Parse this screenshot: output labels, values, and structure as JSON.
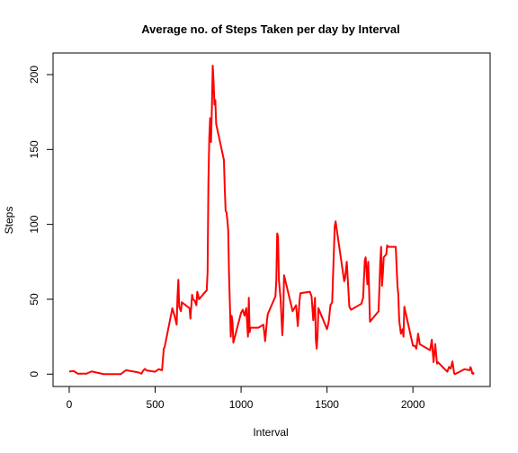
{
  "chart_data": {
    "type": "line",
    "title": "Average no. of Steps Taken per day by Interval",
    "x_label": "Interval",
    "y_label": "Steps",
    "x": [
      0,
      25,
      50,
      100,
      130,
      200,
      300,
      330,
      400,
      420,
      430,
      440,
      450,
      500,
      520,
      540,
      550,
      555,
      600,
      615,
      625,
      630,
      635,
      640,
      650,
      655,
      700,
      705,
      715,
      720,
      730,
      740,
      745,
      750,
      755,
      800,
      805,
      810,
      815,
      820,
      825,
      830,
      835,
      840,
      845,
      850,
      855,
      900,
      905,
      910,
      915,
      920,
      925,
      930,
      935,
      940,
      945,
      950,
      955,
      1000,
      1010,
      1020,
      1030,
      1040,
      1045,
      1050,
      1055,
      1100,
      1130,
      1140,
      1150,
      1155,
      1200,
      1205,
      1210,
      1215,
      1220,
      1230,
      1240,
      1245,
      1250,
      1300,
      1310,
      1320,
      1330,
      1340,
      1345,
      1400,
      1410,
      1420,
      1430,
      1435,
      1440,
      1445,
      1450,
      1500,
      1510,
      1520,
      1530,
      1535,
      1540,
      1545,
      1550,
      1600,
      1605,
      1615,
      1630,
      1640,
      1700,
      1710,
      1720,
      1725,
      1730,
      1735,
      1740,
      1745,
      1750,
      1800,
      1805,
      1810,
      1815,
      1820,
      1825,
      1830,
      1845,
      1850,
      1855,
      1900,
      1910,
      1915,
      1920,
      1930,
      1940,
      1945,
      1950,
      2000,
      2010,
      2020,
      2030,
      2040,
      2100,
      2110,
      2120,
      2130,
      2140,
      2145,
      2200,
      2210,
      2220,
      2230,
      2240,
      2245,
      2300,
      2330,
      2335,
      2340,
      2345,
      2350,
      2355
    ],
    "series": [
      {
        "name": "Steps",
        "color": "#ff0000",
        "values": [
          1.7,
          2.1,
          0.3,
          0.3,
          1.8,
          0,
          0,
          2.6,
          1.2,
          0.3,
          2.3,
          3.5,
          2.5,
          1.6,
          3.3,
          2.6,
          17,
          18,
          44,
          38,
          33,
          52,
          63,
          45,
          42,
          48,
          44,
          37,
          53,
          50,
          49,
          46,
          55,
          53,
          50,
          56,
          68,
          129,
          158,
          171,
          155,
          177,
          206,
          195,
          180,
          183,
          167,
          143,
          124,
          109,
          108,
          103,
          96,
          66,
          46,
          25,
          39,
          35,
          21,
          41,
          43,
          39,
          44,
          25,
          51,
          28,
          31,
          31,
          33,
          22,
          35,
          40,
          52,
          63,
          94,
          92,
          63,
          50,
          26,
          38,
          66,
          42,
          44,
          46,
          32,
          49,
          54,
          55,
          52,
          36,
          51,
          23,
          17,
          26,
          44,
          30,
          35,
          46,
          48,
          65,
          82,
          99,
          102,
          62,
          64,
          75,
          45,
          43,
          47,
          51,
          76,
          78,
          69,
          60,
          75,
          56,
          35,
          42,
          58,
          75,
          85,
          59,
          67,
          78,
          80,
          86,
          85,
          85,
          59,
          53,
          36,
          27,
          30,
          25,
          45,
          19,
          19,
          17,
          27,
          20,
          16,
          23,
          8,
          20,
          7,
          8,
          1.6,
          4.8,
          3.7,
          8.5,
          0.5,
          0,
          3.3,
          2.6,
          4.7,
          3.3,
          0.6,
          0.2,
          1.1
        ]
      }
    ],
    "xlim": [
      -94.2,
      2449.2
    ],
    "ylim": [
      -8.25,
      214.4
    ],
    "xticks": [
      0,
      500,
      1000,
      1500,
      2000
    ],
    "yticks": [
      0,
      50,
      100,
      150,
      200
    ]
  }
}
